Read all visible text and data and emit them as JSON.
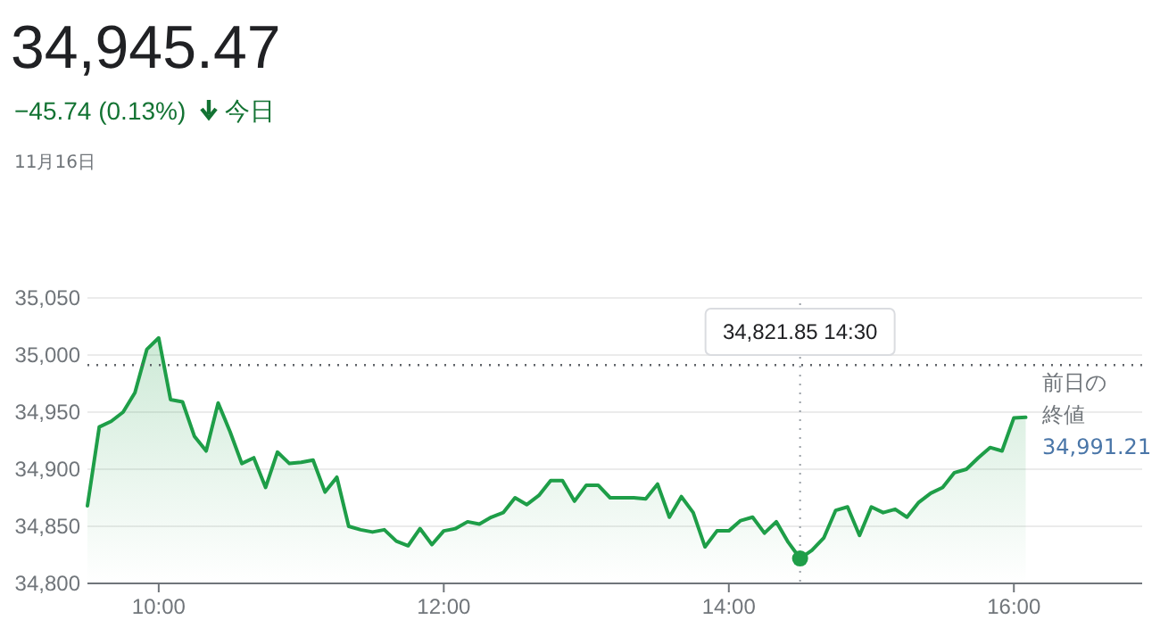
{
  "chart_data": {
    "type": "area",
    "title": "34,945.47",
    "subtitle": "−45.74 (0.13%)",
    "annotations": [
      "今日",
      "11月16日",
      "34,821.85 14:30"
    ],
    "x": [
      9.5,
      9.583,
      9.667,
      9.75,
      9.833,
      9.917,
      10,
      10.083,
      10.167,
      10.25,
      10.333,
      10.417,
      10.5,
      10.583,
      10.667,
      10.75,
      10.833,
      10.917,
      11,
      11.083,
      11.167,
      11.25,
      11.333,
      11.417,
      11.5,
      11.583,
      11.667,
      11.75,
      11.833,
      11.917,
      12,
      12.083,
      12.167,
      12.25,
      12.333,
      12.417,
      12.5,
      12.583,
      12.667,
      12.75,
      12.833,
      12.917,
      13,
      13.083,
      13.167,
      13.25,
      13.333,
      13.417,
      13.5,
      13.583,
      13.667,
      13.75,
      13.833,
      13.917,
      14,
      14.083,
      14.167,
      14.25,
      14.333,
      14.417,
      14.5,
      14.583,
      14.667,
      14.75,
      14.833,
      14.917,
      15,
      15.083,
      15.167,
      15.25,
      15.333,
      15.417,
      15.5,
      15.583,
      15.667,
      15.75,
      15.833,
      15.917,
      16,
      16.083
    ],
    "series": [
      {
        "color": "#1e9e48",
        "values": [
          34868,
          34937,
          34942,
          34950,
          34967,
          35005,
          35015,
          34961,
          34959,
          34929,
          34916,
          34958,
          34933,
          34905,
          34910,
          34884,
          34915,
          34905,
          34906,
          34908,
          34880,
          34893,
          34850,
          34847,
          34845,
          34847,
          34837,
          34833,
          34848,
          34834,
          34846,
          34848,
          34854,
          34852,
          34858,
          34862,
          34875,
          34869,
          34877,
          34890,
          34890,
          34872,
          34886,
          34886,
          34875,
          34875,
          34875,
          34874,
          34887,
          34858,
          34876,
          34862,
          34832,
          34846,
          34846,
          34855,
          34858,
          34844,
          34854,
          34836,
          34821.85,
          34829,
          34840,
          34864,
          34867,
          34842,
          34867,
          34862,
          34865,
          34858,
          34871,
          34879,
          34884,
          34897,
          34900,
          34910,
          34919,
          34916,
          34945,
          34945.47
        ]
      }
    ],
    "xlim": [
      9.5,
      16.9
    ],
    "ylim": [
      34800,
      35050
    ],
    "xticks": [
      {
        "value": 10,
        "label": "10:00"
      },
      {
        "value": 12,
        "label": "12:00"
      },
      {
        "value": 14,
        "label": "14:00"
      },
      {
        "value": 16,
        "label": "16:00"
      }
    ],
    "yticks": [
      {
        "value": 34800,
        "label": "34,800"
      },
      {
        "value": 34850,
        "label": "34,850"
      },
      {
        "value": 34900,
        "label": "34,900"
      },
      {
        "value": 34950,
        "label": "34,950"
      },
      {
        "value": 35000,
        "label": "35,000"
      },
      {
        "value": 35050,
        "label": "35,050"
      }
    ],
    "ref_lines": [
      {
        "axis": "y",
        "value": 34991.21,
        "label": "前日の終値 34,991.21",
        "line_style": "dotted",
        "color": "#5f6368"
      },
      {
        "axis": "x",
        "value": 14.5,
        "line_style": "dotted",
        "color": "#9aa0a6"
      }
    ],
    "grid": "y",
    "marker": "none",
    "line_style": "solid"
  }
}
